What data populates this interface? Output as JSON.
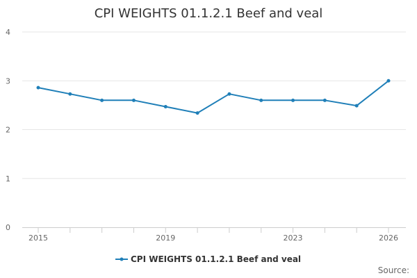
{
  "chart_data": {
    "type": "line",
    "title": "CPI WEIGHTS 01.1.2.1 Beef and veal",
    "x": [
      2015,
      2016,
      2017,
      2018,
      2019,
      2020,
      2021,
      2022,
      2023,
      2024,
      2025,
      2026
    ],
    "x_tick_labels": [
      "2015",
      "2019",
      "2023",
      "2026"
    ],
    "x_tick_values": [
      2015,
      2019,
      2023,
      2026
    ],
    "y_tick_labels": [
      "0",
      "1",
      "2",
      "3",
      "4"
    ],
    "ylim": [
      0,
      4
    ],
    "grid": true,
    "legend_position": "bottom",
    "series": [
      {
        "name": "CPI WEIGHTS 01.1.2.1 Beef and veal",
        "color": "#1f7fb8",
        "values": [
          2.86,
          2.73,
          2.6,
          2.6,
          2.47,
          2.34,
          2.73,
          2.6,
          2.6,
          2.6,
          2.49,
          3.0
        ]
      }
    ],
    "source_label": "Source:"
  }
}
